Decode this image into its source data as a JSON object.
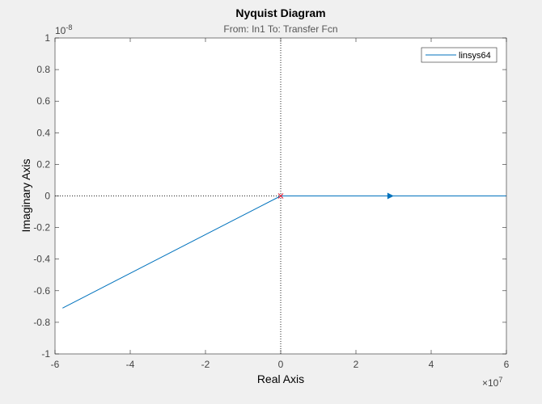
{
  "chart_data": {
    "type": "line",
    "title": "Nyquist Diagram",
    "subtitle": "From: In1  To: Transfer Fcn",
    "xlabel": "Real Axis",
    "ylabel": "Imaginary Axis",
    "x_exponent": "×10",
    "x_exponent_power": "7",
    "y_exponent": "10",
    "y_exponent_power": "-8",
    "xlim": [
      -6,
      6
    ],
    "ylim": [
      -1,
      1
    ],
    "xticks": [
      -6,
      -4,
      -2,
      0,
      2,
      4,
      6
    ],
    "yticks": [
      -1,
      -0.8,
      -0.6,
      -0.4,
      -0.2,
      0,
      0.2,
      0.4,
      0.6,
      0.8,
      1
    ],
    "xtick_labels": [
      "-6",
      "-4",
      "-2",
      "0",
      "2",
      "4",
      "6"
    ],
    "ytick_labels": [
      "-1",
      "-0.8",
      "-0.6",
      "-0.4",
      "-0.2",
      "0",
      "0.2",
      "0.4",
      "0.6",
      "0.8",
      "1"
    ],
    "legend_position": "top-right",
    "series": [
      {
        "name": "linsys64",
        "color": "#0072BD",
        "segments": [
          {
            "x": [
              -5.8,
              0
            ],
            "y": [
              -0.71,
              0
            ]
          },
          {
            "x": [
              0,
              6
            ],
            "y": [
              0,
              0
            ]
          }
        ],
        "arrow_at": {
          "x": 2.9,
          "y": 0
        }
      }
    ],
    "critical_point": {
      "x": 0,
      "y": 0,
      "color": "#e0243b"
    },
    "crosshair": true
  }
}
